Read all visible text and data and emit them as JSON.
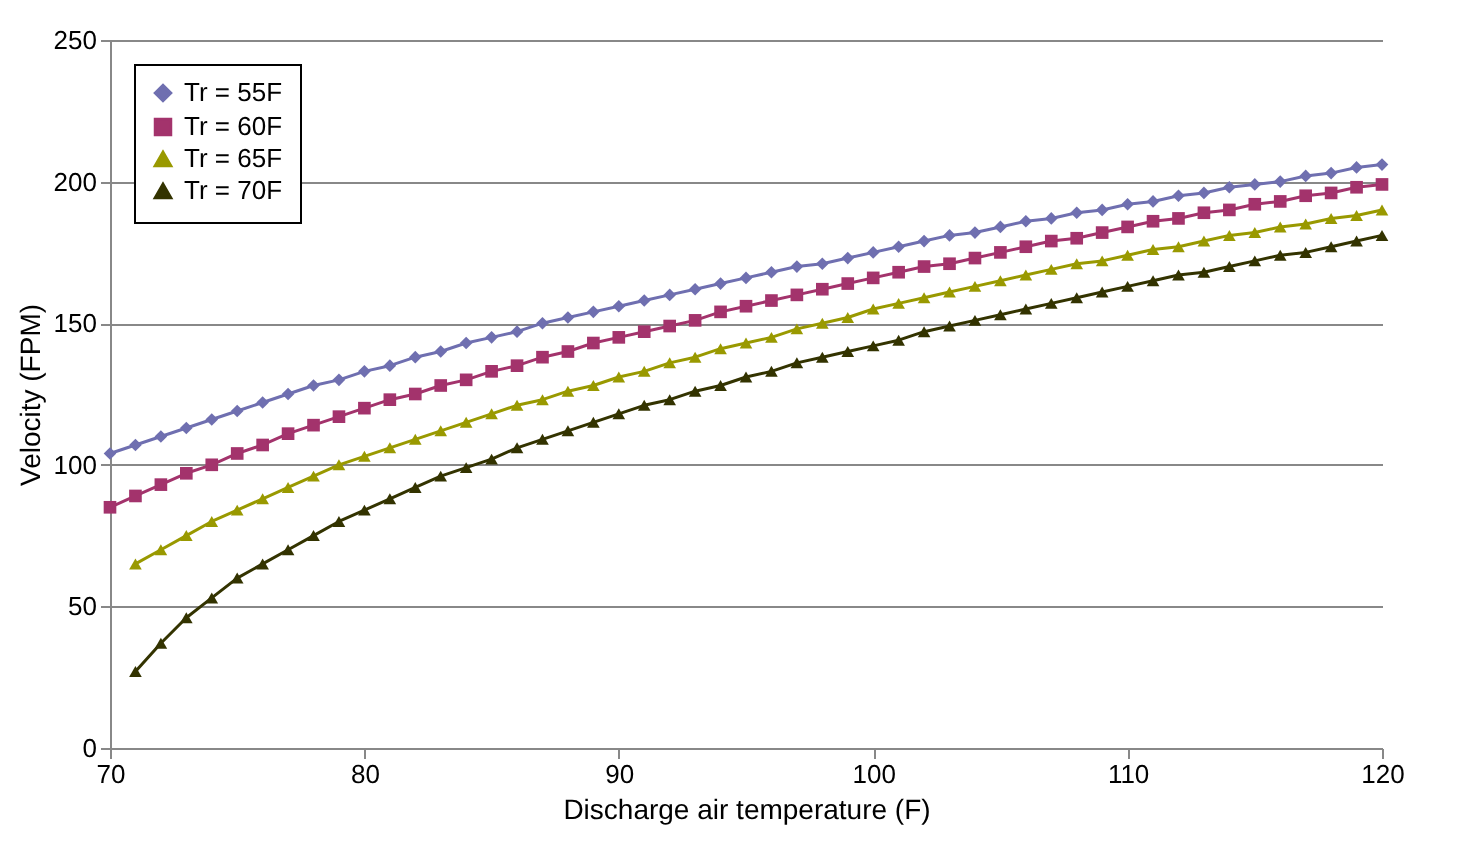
{
  "chart_data": {
    "type": "line",
    "xlabel": "Discharge air temperature (F)",
    "ylabel": "Velocity (FPM)",
    "x": [
      70,
      71,
      72,
      73,
      74,
      75,
      76,
      77,
      78,
      79,
      80,
      81,
      82,
      83,
      84,
      85,
      86,
      87,
      88,
      89,
      90,
      91,
      92,
      93,
      94,
      95,
      96,
      97,
      98,
      99,
      100,
      101,
      102,
      103,
      104,
      105,
      106,
      107,
      108,
      109,
      110,
      111,
      112,
      113,
      114,
      115,
      116,
      117,
      118,
      119,
      120
    ],
    "series": [
      {
        "name": "Tr = 55F",
        "color": "#6f6fb0",
        "marker": "diamond",
        "values": [
          104,
          107,
          110,
          113,
          116,
          119,
          122,
          125,
          128,
          130,
          133,
          135,
          138,
          140,
          143,
          145,
          147,
          150,
          152,
          154,
          156,
          158,
          160,
          162,
          164,
          166,
          168,
          170,
          171,
          173,
          175,
          177,
          179,
          181,
          182,
          184,
          186,
          187,
          189,
          190,
          192,
          193,
          195,
          196,
          198,
          199,
          200,
          202,
          203,
          205,
          206
        ]
      },
      {
        "name": "Tr = 60F",
        "color": "#a3336c",
        "marker": "square",
        "values": [
          85,
          89,
          93,
          97,
          100,
          104,
          107,
          111,
          114,
          117,
          120,
          123,
          125,
          128,
          130,
          133,
          135,
          138,
          140,
          143,
          145,
          147,
          149,
          151,
          154,
          156,
          158,
          160,
          162,
          164,
          166,
          168,
          170,
          171,
          173,
          175,
          177,
          179,
          180,
          182,
          184,
          186,
          187,
          189,
          190,
          192,
          193,
          195,
          196,
          198,
          199
        ]
      },
      {
        "name": "Tr = 65F",
        "color": "#999900",
        "marker": "triangle",
        "values": [
          null,
          65,
          70,
          75,
          80,
          84,
          88,
          92,
          96,
          100,
          103,
          106,
          109,
          112,
          115,
          118,
          121,
          123,
          126,
          128,
          131,
          133,
          136,
          138,
          141,
          143,
          145,
          148,
          150,
          152,
          155,
          157,
          159,
          161,
          163,
          165,
          167,
          169,
          171,
          172,
          174,
          176,
          177,
          179,
          181,
          182,
          184,
          185,
          187,
          188,
          190
        ]
      },
      {
        "name": "Tr = 70F",
        "color": "#333300",
        "marker": "triangle",
        "values": [
          null,
          27,
          37,
          46,
          53,
          60,
          65,
          70,
          75,
          80,
          84,
          88,
          92,
          96,
          99,
          102,
          106,
          109,
          112,
          115,
          118,
          121,
          123,
          126,
          128,
          131,
          133,
          136,
          138,
          140,
          142,
          144,
          147,
          149,
          151,
          153,
          155,
          157,
          159,
          161,
          163,
          165,
          167,
          168,
          170,
          172,
          174,
          175,
          177,
          179,
          181
        ]
      }
    ],
    "xlim": [
      70,
      120
    ],
    "xticks": [
      70,
      80,
      90,
      100,
      110,
      120
    ],
    "ylim": [
      0,
      250
    ],
    "yticks": [
      0,
      50,
      100,
      150,
      200,
      250
    ],
    "grid": "y",
    "legend": "top left"
  }
}
